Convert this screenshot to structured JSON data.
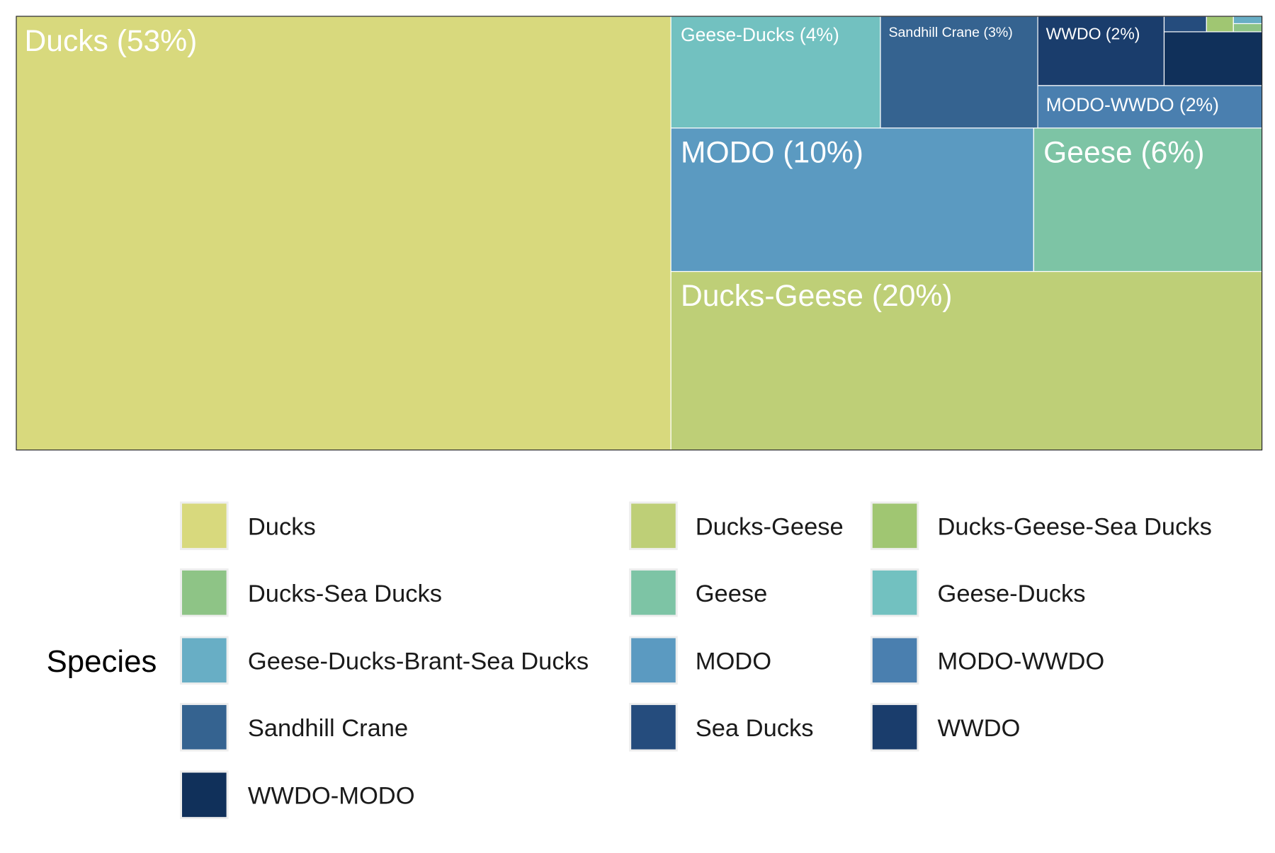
{
  "chart_data": {
    "type": "treemap",
    "legend": {
      "title": "Species",
      "placement": "bottom"
    },
    "species": [
      {
        "name": "Ducks",
        "color": "#D8D97D"
      },
      {
        "name": "Ducks-Geese",
        "color": "#BECF77"
      },
      {
        "name": "Ducks-Geese-Sea Ducks",
        "color": "#A0C672"
      },
      {
        "name": "Ducks-Sea Ducks",
        "color": "#8EC486"
      },
      {
        "name": "Geese",
        "color": "#7DC4A5"
      },
      {
        "name": "Geese-Ducks",
        "color": "#72C1C0"
      },
      {
        "name": "Geese-Ducks-Brant-Sea Ducks",
        "color": "#68AEC5"
      },
      {
        "name": "MODO",
        "color": "#5B9AC1"
      },
      {
        "name": "MODO-WWDO",
        "color": "#4A7FAF"
      },
      {
        "name": "Sandhill Crane",
        "color": "#356390"
      },
      {
        "name": "Sea Ducks",
        "color": "#254C7D"
      },
      {
        "name": "WWDO",
        "color": "#1A3D6C"
      },
      {
        "name": "WWDO-MODO",
        "color": "#10305A"
      }
    ],
    "tiles": [
      {
        "species": "Ducks",
        "label": "Ducks (53%)"
      },
      {
        "species": "Ducks-Geese",
        "label": "Ducks-Geese (20%)"
      },
      {
        "species": "MODO",
        "label": "MODO (10%)"
      },
      {
        "species": "Geese",
        "label": "Geese (6%)"
      },
      {
        "species": "Geese-Ducks",
        "label": "Geese-Ducks (4%)"
      },
      {
        "species": "Sandhill Crane",
        "label": "Sandhill Crane (3%)"
      },
      {
        "species": "WWDO",
        "label": "WWDO (2%)"
      },
      {
        "species": "MODO-WWDO",
        "label": "MODO-WWDO (2%)"
      },
      {
        "species": "WWDO-MODO",
        "label": ""
      },
      {
        "species": "Sea Ducks",
        "label": ""
      },
      {
        "species": "Ducks-Geese-Sea Ducks",
        "label": ""
      },
      {
        "species": "Ducks-Sea Ducks",
        "label": ""
      },
      {
        "species": "Geese-Ducks-Brant-Sea Ducks",
        "label": ""
      }
    ]
  }
}
